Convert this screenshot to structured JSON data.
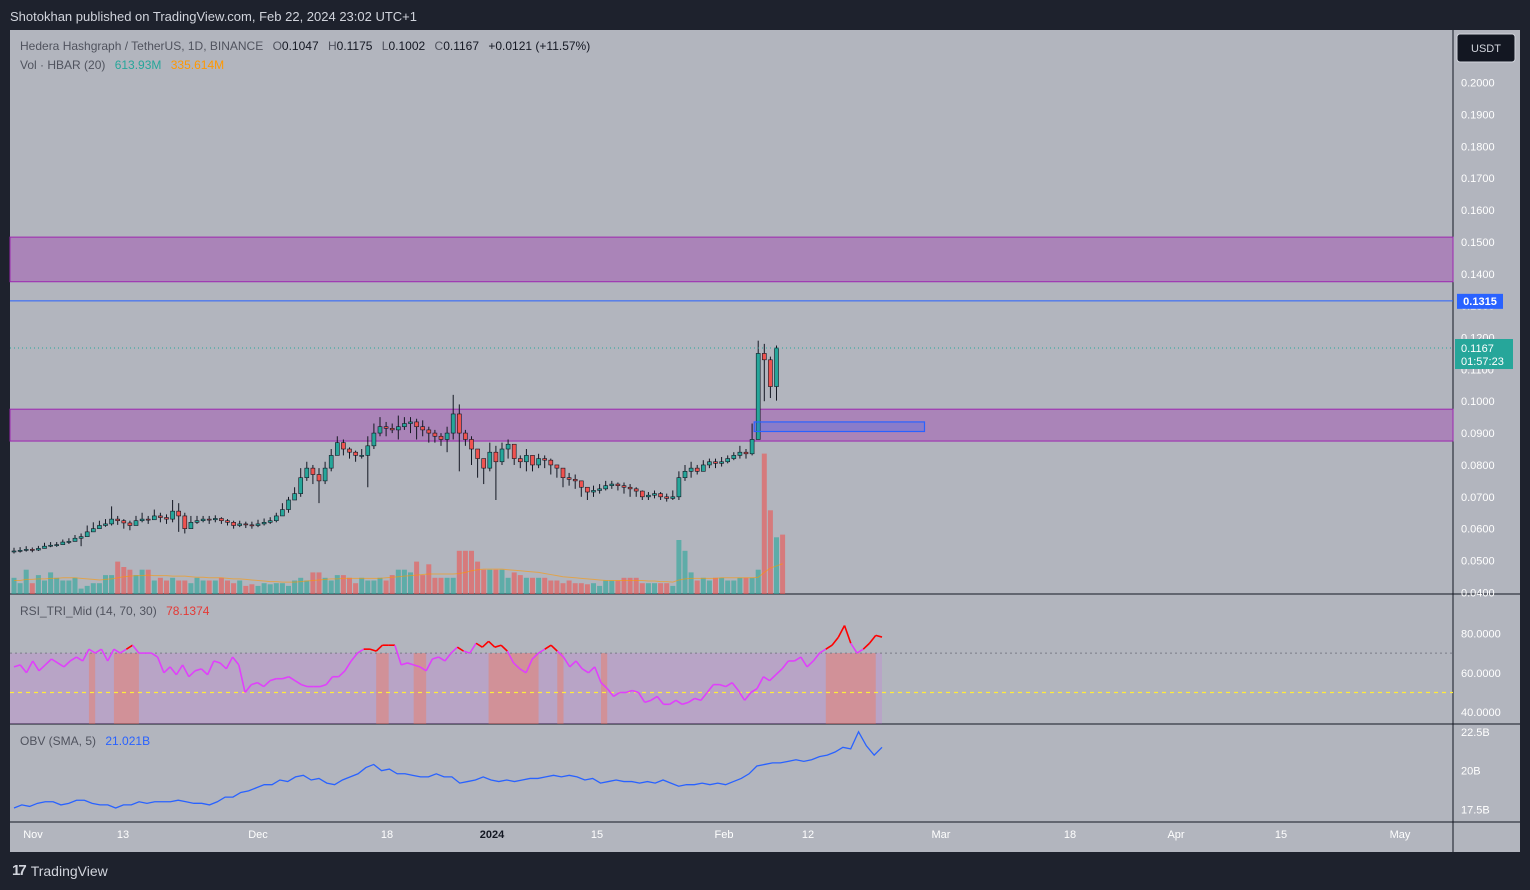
{
  "header": {
    "publisher": "Shotokhan published on TradingView.com, Feb 22, 2024 23:02 UTC+1"
  },
  "legend": {
    "symbol": "Hedera Hashgraph / TetherUS, 1D, BINANCE",
    "o_label": "O",
    "o": "0.1047",
    "h_label": "H",
    "h": "0.1175",
    "l_label": "L",
    "l": "0.1002",
    "c_label": "C",
    "c": "0.1167",
    "change": "+0.0121 (+11.57%)",
    "vol_label": "Vol · HBAR (20)",
    "vol_value": "613.93M",
    "vol_ma": "335.614M"
  },
  "currency_button": "USDT",
  "price_badges": {
    "line_level": "0.1315",
    "last_price": "0.1167",
    "countdown": "01:57:23"
  },
  "colors": {
    "background": "#b2b5be",
    "up": "#26a69a",
    "down": "#ef5350",
    "zone": "#9c27b0",
    "line": "#2962ff",
    "rsi": "#e040fb",
    "obv": "#2962ff"
  },
  "chart_data": [
    {
      "type": "candlestick",
      "title": "Hedera Hashgraph / TetherUS, 1D, BINANCE",
      "x_ticks": [
        "Nov",
        "13",
        "Dec",
        "18",
        "2024",
        "15",
        "Feb",
        "12",
        "Mar",
        "18",
        "Apr",
        "15",
        "May"
      ],
      "y_ticks": [
        "0.2000",
        "0.1900",
        "0.1800",
        "0.1700",
        "0.1600",
        "0.1500",
        "0.1400",
        "0.1300",
        "0.1200",
        "0.1100",
        "0.1000",
        "0.0900",
        "0.0800",
        "0.0700",
        "0.0600",
        "0.0500",
        "0.0400"
      ],
      "ylim": [
        0.0395,
        0.2165
      ],
      "start_date": "2023-10-30",
      "close": [
        0.053,
        0.0532,
        0.0535,
        0.0533,
        0.0538,
        0.0545,
        0.0548,
        0.055,
        0.0558,
        0.056,
        0.057,
        0.0575,
        0.059,
        0.06,
        0.061,
        0.0615,
        0.063,
        0.0625,
        0.0618,
        0.061,
        0.0625,
        0.063,
        0.0628,
        0.064,
        0.0635,
        0.063,
        0.0655,
        0.064,
        0.06,
        0.062,
        0.0625,
        0.063,
        0.0628,
        0.0632,
        0.0625,
        0.062,
        0.061,
        0.0615,
        0.0612,
        0.061,
        0.0615,
        0.062,
        0.0625,
        0.064,
        0.066,
        0.069,
        0.071,
        0.076,
        0.079,
        0.077,
        0.075,
        0.079,
        0.083,
        0.087,
        0.085,
        0.084,
        0.083,
        0.083,
        0.086,
        0.09,
        0.092,
        0.0915,
        0.091,
        0.092,
        0.093,
        0.0935,
        0.092,
        0.091,
        0.09,
        0.089,
        0.088,
        0.09,
        0.096,
        0.09,
        0.088,
        0.085,
        0.082,
        0.079,
        0.084,
        0.081,
        0.085,
        0.0865,
        0.082,
        0.081,
        0.083,
        0.08,
        0.082,
        0.0815,
        0.08,
        0.079,
        0.076,
        0.0755,
        0.075,
        0.073,
        0.0715,
        0.072,
        0.0725,
        0.0735,
        0.074,
        0.0735,
        0.073,
        0.0725,
        0.0718,
        0.07,
        0.0705,
        0.071,
        0.07,
        0.0695,
        0.07,
        0.076,
        0.078,
        0.079,
        0.078,
        0.08,
        0.081,
        0.0805,
        0.081,
        0.082,
        0.083,
        0.084,
        0.0835,
        0.088,
        0.115,
        0.113,
        0.1046,
        0.1167
      ],
      "high": [
        0.054,
        0.0542,
        0.0545,
        0.0541,
        0.0546,
        0.0556,
        0.0558,
        0.0558,
        0.0566,
        0.057,
        0.058,
        0.0585,
        0.061,
        0.062,
        0.0625,
        0.063,
        0.067,
        0.064,
        0.063,
        0.0625,
        0.064,
        0.065,
        0.064,
        0.066,
        0.065,
        0.0645,
        0.069,
        0.068,
        0.065,
        0.064,
        0.064,
        0.064,
        0.064,
        0.0642,
        0.0636,
        0.063,
        0.0625,
        0.0625,
        0.0622,
        0.0622,
        0.0628,
        0.0632,
        0.0636,
        0.065,
        0.068,
        0.07,
        0.073,
        0.079,
        0.081,
        0.08,
        0.079,
        0.081,
        0.085,
        0.089,
        0.088,
        0.0855,
        0.0845,
        0.085,
        0.089,
        0.093,
        0.095,
        0.0935,
        0.093,
        0.0955,
        0.095,
        0.095,
        0.0945,
        0.094,
        0.092,
        0.091,
        0.09,
        0.092,
        0.102,
        0.099,
        0.091,
        0.089,
        0.085,
        0.082,
        0.087,
        0.086,
        0.087,
        0.088,
        0.086,
        0.083,
        0.085,
        0.083,
        0.0835,
        0.083,
        0.082,
        0.08,
        0.079,
        0.0775,
        0.077,
        0.075,
        0.073,
        0.0735,
        0.074,
        0.075,
        0.075,
        0.0745,
        0.0745,
        0.074,
        0.073,
        0.072,
        0.0715,
        0.072,
        0.0715,
        0.071,
        0.072,
        0.078,
        0.08,
        0.081,
        0.08,
        0.0815,
        0.082,
        0.082,
        0.0825,
        0.083,
        0.084,
        0.086,
        0.085,
        0.093,
        0.119,
        0.118,
        0.114,
        0.1175
      ],
      "low": [
        0.0522,
        0.0525,
        0.0528,
        0.0526,
        0.053,
        0.0538,
        0.0542,
        0.0543,
        0.055,
        0.0552,
        0.056,
        0.0545,
        0.058,
        0.0592,
        0.06,
        0.0606,
        0.061,
        0.0612,
        0.06,
        0.0595,
        0.061,
        0.062,
        0.0615,
        0.0628,
        0.062,
        0.0615,
        0.062,
        0.059,
        0.0585,
        0.06,
        0.0615,
        0.062,
        0.0615,
        0.062,
        0.0615,
        0.061,
        0.06,
        0.0605,
        0.0602,
        0.06,
        0.0605,
        0.061,
        0.0615,
        0.062,
        0.064,
        0.065,
        0.069,
        0.07,
        0.075,
        0.074,
        0.068,
        0.074,
        0.078,
        0.083,
        0.083,
        0.082,
        0.081,
        0.082,
        0.073,
        0.085,
        0.089,
        0.089,
        0.09,
        0.088,
        0.091,
        0.09,
        0.088,
        0.089,
        0.087,
        0.087,
        0.086,
        0.084,
        0.088,
        0.078,
        0.086,
        0.08,
        0.076,
        0.074,
        0.078,
        0.069,
        0.08,
        0.082,
        0.08,
        0.079,
        0.078,
        0.078,
        0.079,
        0.079,
        0.077,
        0.076,
        0.073,
        0.0735,
        0.0725,
        0.07,
        0.069,
        0.07,
        0.071,
        0.072,
        0.0725,
        0.072,
        0.071,
        0.07,
        0.07,
        0.069,
        0.069,
        0.0695,
        0.069,
        0.0685,
        0.069,
        0.069,
        0.075,
        0.076,
        0.077,
        0.078,
        0.079,
        0.079,
        0.0795,
        0.0805,
        0.0815,
        0.082,
        0.082,
        0.083,
        0.088,
        0.1,
        0.101,
        0.1002
      ],
      "zones": [
        {
          "low": 0.1375,
          "high": 0.1515
        },
        {
          "low": 0.0875,
          "high": 0.0975
        }
      ],
      "order_block": {
        "low": 0.0905,
        "high": 0.0935,
        "from_bar": 122,
        "to_bar": 145
      },
      "horizontal_line": 0.1315
    },
    {
      "type": "bar",
      "title": "Vol · HBAR (20)",
      "values": [
        30,
        20,
        45,
        20,
        35,
        25,
        40,
        30,
        25,
        25,
        30,
        10,
        15,
        20,
        20,
        35,
        35,
        60,
        50,
        45,
        35,
        45,
        45,
        25,
        30,
        25,
        30,
        25,
        25,
        20,
        30,
        25,
        25,
        25,
        30,
        25,
        20,
        25,
        15,
        18,
        15,
        20,
        18,
        20,
        20,
        15,
        25,
        30,
        25,
        40,
        40,
        30,
        25,
        35,
        35,
        30,
        20,
        30,
        25,
        25,
        30,
        25,
        35,
        45,
        45,
        40,
        60,
        35,
        55,
        30,
        30,
        30,
        30,
        80,
        80,
        80,
        60,
        45,
        45,
        45,
        45,
        30,
        40,
        35,
        30,
        30,
        30,
        30,
        25,
        25,
        20,
        25,
        20,
        20,
        18,
        20,
        15,
        25,
        25,
        25,
        30,
        30,
        30,
        20,
        20,
        20,
        20,
        20,
        15,
        100,
        80,
        40,
        25,
        30,
        25,
        30,
        30,
        25,
        25,
        30,
        30,
        30,
        45,
        260,
        155,
        105,
        110
      ],
      "ma": [
        25,
        25,
        27,
        27,
        28,
        28,
        29,
        29,
        30,
        30,
        30,
        29,
        28,
        27,
        26,
        27,
        28,
        30,
        32,
        33,
        34,
        34,
        35,
        34,
        34,
        34,
        33,
        33,
        33,
        32,
        31,
        31,
        30,
        30,
        30,
        29,
        28,
        28,
        27,
        26,
        25,
        24,
        23,
        23,
        22,
        22,
        22,
        23,
        24,
        25,
        26,
        27,
        28,
        28,
        29,
        29,
        29,
        29,
        29,
        29,
        29,
        30,
        31,
        32,
        33,
        34,
        35,
        36,
        37,
        37,
        37,
        37,
        37,
        38,
        40,
        43,
        45,
        46,
        46,
        46,
        46,
        45,
        44,
        43,
        42,
        41,
        40,
        38,
        36,
        34,
        32,
        31,
        30,
        29,
        28,
        27,
        26,
        25,
        25,
        25,
        25,
        25,
        25,
        25,
        24,
        24,
        23,
        23,
        22,
        26,
        28,
        29,
        29,
        29,
        29,
        29,
        30,
        30,
        30,
        30,
        30,
        30,
        31,
        40,
        48,
        52,
        56
      ]
    },
    {
      "type": "line",
      "title": "RSI_TRI_Mid (14, 70, 30)",
      "current": "78.1374",
      "y_ticks": [
        "80.0000",
        "60.0000",
        "40.0000"
      ],
      "ylim": [
        34,
        100
      ],
      "upper_band": 70,
      "mid_line": 50,
      "values": [
        63,
        64,
        60,
        66,
        61,
        64,
        67,
        65,
        63,
        66,
        68,
        66,
        72,
        70,
        72,
        66,
        72,
        70,
        72,
        74,
        70,
        70,
        70,
        68,
        60,
        63,
        59,
        64,
        58,
        61,
        62,
        59,
        66,
        65,
        62,
        68,
        64,
        50,
        54,
        55,
        53,
        56,
        57,
        57,
        58,
        56,
        54,
        53,
        53,
        53,
        54,
        58,
        58,
        61,
        66,
        70,
        72,
        72,
        71,
        74,
        74,
        74,
        64,
        65,
        64,
        63,
        61,
        67,
        68,
        66,
        70,
        73,
        71,
        70,
        75,
        73,
        76,
        73,
        74,
        71,
        65,
        62,
        60,
        67,
        70,
        72,
        74,
        71,
        68,
        63,
        66,
        62,
        60,
        63,
        55,
        52,
        48,
        50,
        50,
        51,
        50,
        45,
        46,
        48,
        44,
        44,
        46,
        44,
        45,
        47,
        46,
        50,
        54,
        54,
        53,
        55,
        51,
        46,
        50,
        52,
        58,
        56,
        59,
        62,
        66,
        66,
        68,
        63,
        66,
        70,
        72,
        74,
        78,
        84,
        75,
        70,
        72,
        75,
        79,
        78.14
      ],
      "overbought_spans": [
        [
          12,
          13
        ],
        [
          16,
          20
        ],
        [
          58,
          60
        ],
        [
          64,
          66
        ],
        [
          76,
          84
        ],
        [
          87,
          88
        ],
        [
          94,
          95
        ],
        [
          130,
          138
        ]
      ]
    },
    {
      "type": "line",
      "title": "OBV (SMA, 5)",
      "current": "21.021B",
      "y_ticks": [
        "22.5B",
        "20B",
        "17.5B"
      ],
      "ylim": [
        16.7,
        23.0
      ],
      "values": [
        17.6,
        17.8,
        17.7,
        17.9,
        18.0,
        18.0,
        17.8,
        17.9,
        18.1,
        18.1,
        17.9,
        17.8,
        17.8,
        17.6,
        17.8,
        17.8,
        18.0,
        17.9,
        18.0,
        18.0,
        18.0,
        18.1,
        18.0,
        17.9,
        17.9,
        17.8,
        18.0,
        18.3,
        18.3,
        18.6,
        18.7,
        18.9,
        19.1,
        19.1,
        19.4,
        19.3,
        19.6,
        19.7,
        19.4,
        19.5,
        19.2,
        19.1,
        19.4,
        19.6,
        19.8,
        20.2,
        20.4,
        20.0,
        20.1,
        19.8,
        19.8,
        19.7,
        19.6,
        19.6,
        19.8,
        19.6,
        19.6,
        19.2,
        19.3,
        19.4,
        19.6,
        19.4,
        19.3,
        19.4,
        19.3,
        19.4,
        19.5,
        19.5,
        19.6,
        19.7,
        19.6,
        19.7,
        19.6,
        19.4,
        19.5,
        19.2,
        19.3,
        19.4,
        19.3,
        19.3,
        19.2,
        19.3,
        19.2,
        19.4,
        19.2,
        19.0,
        19.1,
        19.1,
        19.2,
        19.1,
        19.2,
        19.1,
        19.3,
        19.5,
        19.8,
        20.3,
        20.4,
        20.5,
        20.5,
        20.6,
        20.7,
        20.6,
        20.7,
        20.9,
        21.0,
        21.2,
        21.5,
        21.4,
        22.5,
        21.6,
        21.0,
        21.5
      ]
    }
  ]
}
